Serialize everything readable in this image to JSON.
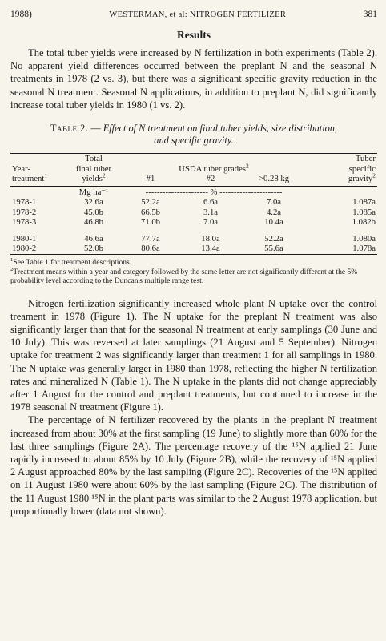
{
  "header": {
    "year": "1988)",
    "running_title_authors": "WESTERMAN, et al:",
    "running_title_topic": "NITROGEN FERTILIZER",
    "page_number": "381"
  },
  "section_heading": "Results",
  "results_paragraph": "The total tuber yields were increased by N fertilization in both experiments (Table 2). No apparent yield differences occurred between the preplant N and the seasonal N treatments in 1978 (2 vs. 3), but there was a significant specific gravity reduction in the seasonal N treatment. Seasonal N applications, in addition to preplant N, did significantly increase total tuber yields in 1980 (1 vs. 2).",
  "table": {
    "number": "Table 2.",
    "dash": "—",
    "caption_line1": "Effect of N treatment on final tuber yields, size distribution,",
    "caption_line2": "and specific gravity.",
    "headers": {
      "year_line1": "Year-",
      "year_line2": "treatment",
      "year_sup": "1",
      "total_line1": "Total",
      "total_line2": "final tuber",
      "total_line3": "yields",
      "total_sup": "2",
      "grades_label": "USDA tuber grades",
      "grades_sup": "2",
      "grade1": "#1",
      "grade2": "#2",
      "grade3": ">0.28 kg",
      "sg_line1": "Tuber",
      "sg_line2": "specific",
      "sg_line3": "gravity",
      "sg_sup": "2"
    },
    "units": {
      "yield": "Mg ha⁻¹",
      "percent": "---------------------- % ----------------------"
    },
    "rows": [
      {
        "treatment": "1978-1",
        "total": "32.6a",
        "g1": "52.2a",
        "g2": "6.6a",
        "g3": "7.0a",
        "sg": "1.087a"
      },
      {
        "treatment": "1978-2",
        "total": "45.0b",
        "g1": "66.5b",
        "g2": "3.1a",
        "g3": "4.2a",
        "sg": "1.085a"
      },
      {
        "treatment": "1978-3",
        "total": "46.8b",
        "g1": "71.0b",
        "g2": "7.0a",
        "g3": "10.4a",
        "sg": "1.082b"
      },
      {
        "treatment": "1980-1",
        "total": "46.6a",
        "g1": "77.7a",
        "g2": "18.0a",
        "g3": "52.2a",
        "sg": "1.080a"
      },
      {
        "treatment": "1980-2",
        "total": "52.0b",
        "g1": "80.6a",
        "g2": "13.4a",
        "g3": "55.6a",
        "sg": "1.078a"
      }
    ],
    "footnote1": "See Table 1 for treatment descriptions.",
    "footnote2": "Treatment means within a year and category followed by the same letter are not significantly different at the 5% probability level according to the Duncan's multiple range test."
  },
  "paragraph2": "Nitrogen fertilization significantly increased whole plant N uptake over the control treament in 1978 (Figure 1). The N uptake for the preplant N treatment was also significantly larger than that for the seasonal N treatment at early samplings (30 June and 10 July). This was reversed at later samplings (21 August and 5 September). Nitrogen uptake for treatment 2 was significantly larger than treatment 1 for all samplings in 1980. The N uptake was generally larger in 1980 than 1978, reflecting the higher N fertilization rates and mineralized N (Table 1). The N uptake in the plants did not change appreciably after 1 August for the control and preplant treatments, but continued to increase in the 1978 seasonal N treatment (Figure 1).",
  "paragraph3": "The percentage of N fertilizer recovered by the plants in the preplant N treatment increased from about 30% at the first sampling (19 June) to slightly more than 60% for the last three samplings (Figure 2A). The percentage recovery of the ¹⁵N applied 21 June rapidly increased to about 85% by 10 July (Figure 2B), while the recovery of ¹⁵N applied 2 August approached 80% by the last sampling (Figure 2C). Recoveries of the ¹⁵N applied on 11 August 1980 were about 60% by the last sampling (Figure 2C). The distribution of the 11 August 1980 ¹⁵N in the plant parts was similar to the 2 August 1978 application, but proportionally lower (data not shown)."
}
